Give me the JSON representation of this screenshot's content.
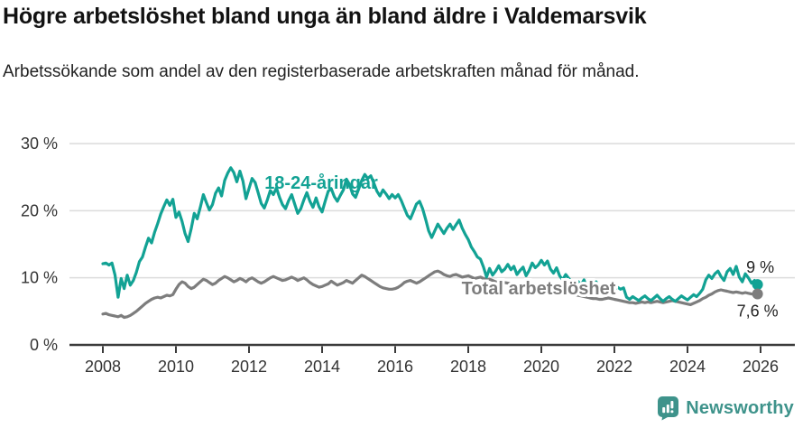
{
  "chart_data": {
    "type": "line",
    "title": "Högre arbetslöshet bland unga än bland äldre i Valdemarsvik",
    "subtitle": "Arbetssökande som andel av den registerbaserade arbetskraften månad för månad.",
    "unit": "percent",
    "frequency": "monthly",
    "grid": true,
    "x_axis": {
      "start_year": 2008,
      "end_year": 2026,
      "tick_values": [
        2008,
        2010,
        2012,
        2014,
        2016,
        2018,
        2020,
        2022,
        2024,
        2026
      ],
      "tick_labels": [
        "2008",
        "2010",
        "2012",
        "2014",
        "2016",
        "2018",
        "2020",
        "2022",
        "2024",
        "2026"
      ]
    },
    "y_axis": {
      "min": 0,
      "max": 30,
      "tick_values": [
        0,
        10,
        20,
        30
      ],
      "tick_labels": [
        "0 %",
        "10 %",
        "20 %",
        "30 %"
      ]
    },
    "axis_color": "#3B3B3B",
    "grid_color": "#DCDCDC",
    "tick_text_color": "#333333",
    "series": [
      {
        "id": "youth",
        "name": "18-24-åringar",
        "color": "#12A294",
        "end_label": "9 %",
        "label_halo": false,
        "label_pos": {
          "x": 356,
          "y": 209
        },
        "end_label_offset": {
          "x": 3,
          "y": -13
        },
        "values": [
          12.1,
          12.2,
          11.9,
          12.2,
          10.4,
          7.1,
          9.9,
          8.4,
          10.4,
          8.9,
          9.6,
          10.8,
          12.4,
          13.1,
          14.6,
          15.9,
          15.2,
          16.8,
          18.1,
          19.5,
          20.6,
          21.6,
          20.8,
          21.7,
          19.0,
          19.8,
          18.4,
          16.6,
          15.4,
          17.3,
          19.6,
          18.8,
          20.5,
          22.4,
          21.2,
          20.1,
          20.9,
          22.6,
          23.4,
          22.2,
          24.5,
          25.6,
          26.4,
          25.7,
          24.3,
          25.9,
          24.4,
          21.8,
          23.3,
          24.8,
          24.2,
          22.7,
          21.1,
          20.4,
          21.6,
          23.0,
          22.4,
          23.4,
          22.0,
          20.9,
          20.3,
          21.5,
          22.4,
          21.0,
          19.6,
          20.3,
          21.6,
          22.7,
          21.4,
          20.5,
          21.9,
          20.6,
          19.8,
          21.4,
          22.9,
          23.3,
          22.1,
          21.4,
          22.3,
          23.1,
          24.7,
          23.9,
          22.5,
          22.0,
          23.2,
          24.5,
          25.4,
          24.8,
          25.2,
          24.1,
          22.9,
          22.2,
          23.1,
          22.5,
          21.8,
          22.4,
          21.9,
          22.4,
          21.5,
          20.4,
          19.3,
          18.8,
          19.9,
          21.0,
          21.4,
          20.3,
          18.7,
          17.0,
          16.0,
          17.0,
          18.0,
          17.3,
          16.6,
          17.4,
          18.0,
          17.2,
          17.9,
          18.6,
          17.4,
          16.5,
          15.7,
          14.6,
          13.9,
          13.1,
          12.8,
          11.6,
          10.1,
          11.4,
          10.4,
          11.0,
          11.8,
          10.9,
          11.3,
          12.0,
          11.2,
          11.7,
          10.5,
          11.1,
          11.6,
          10.3,
          11.1,
          12.2,
          11.5,
          11.9,
          12.6,
          11.9,
          12.5,
          11.3,
          10.7,
          11.5,
          10.3,
          9.7,
          10.5,
          9.9,
          9.3,
          8.7,
          9.5,
          8.9,
          9.7,
          8.5,
          9.2,
          8.7,
          9.4,
          8.6,
          8.2,
          8.6,
          8.3,
          8.5,
          8.4,
          8.6,
          8.3,
          8.5,
          7.1,
          6.8,
          7.2,
          6.9,
          6.6,
          7.0,
          7.3,
          6.9,
          6.6,
          7.0,
          7.4,
          6.9,
          6.5,
          6.9,
          7.2,
          6.8,
          6.5,
          6.9,
          7.3,
          7.0,
          6.7,
          7.1,
          7.5,
          7.2,
          7.7,
          8.3,
          9.7,
          10.4,
          9.9,
          10.6,
          11.0,
          10.2,
          9.6,
          10.9,
          11.4,
          10.5,
          11.7,
          10.1,
          9.4,
          10.6,
          10.0,
          9.2,
          9.6,
          9.0
        ]
      },
      {
        "id": "total",
        "name": "Total arbetslöshet",
        "color": "#7D7D7D",
        "end_label": "7,6 %",
        "label_halo": true,
        "label_pos": {
          "x": 597,
          "y": 326
        },
        "end_label_offset": {
          "x": 0,
          "y": 25
        },
        "values": [
          4.6,
          4.7,
          4.5,
          4.4,
          4.3,
          4.2,
          4.4,
          4.1,
          4.2,
          4.4,
          4.7,
          5.0,
          5.4,
          5.8,
          6.2,
          6.5,
          6.8,
          7.0,
          7.1,
          7.0,
          7.2,
          7.4,
          7.3,
          7.5,
          8.3,
          9.0,
          9.4,
          9.2,
          8.7,
          8.4,
          8.6,
          9.0,
          9.4,
          9.8,
          9.6,
          9.3,
          9.0,
          9.2,
          9.6,
          9.9,
          10.2,
          10.0,
          9.7,
          9.4,
          9.6,
          9.9,
          9.7,
          9.4,
          9.8,
          10.0,
          9.7,
          9.4,
          9.2,
          9.4,
          9.7,
          10.0,
          10.2,
          10.0,
          9.8,
          9.6,
          9.7,
          9.9,
          10.1,
          9.9,
          9.6,
          9.8,
          10.0,
          9.7,
          9.3,
          9.0,
          8.8,
          8.6,
          8.7,
          8.9,
          9.1,
          9.5,
          9.2,
          8.9,
          9.1,
          9.3,
          9.6,
          9.4,
          9.2,
          9.6,
          10.0,
          10.4,
          10.2,
          9.9,
          9.6,
          9.3,
          9.0,
          8.7,
          8.5,
          8.4,
          8.3,
          8.3,
          8.4,
          8.6,
          8.9,
          9.3,
          9.5,
          9.6,
          9.4,
          9.2,
          9.4,
          9.7,
          10.0,
          10.3,
          10.6,
          10.9,
          11.0,
          10.8,
          10.5,
          10.3,
          10.2,
          10.4,
          10.5,
          10.3,
          10.1,
          10.2,
          10.3,
          10.1,
          9.9,
          10.0,
          10.1,
          9.9,
          9.7,
          9.8,
          9.6,
          9.4,
          9.3,
          9.4,
          9.3,
          9.2,
          9.1,
          9.0,
          8.9,
          8.8,
          8.9,
          8.8,
          8.7,
          8.6,
          8.5,
          8.4,
          8.5,
          8.6,
          8.8,
          9.0,
          8.9,
          8.7,
          8.5,
          8.3,
          8.1,
          7.9,
          7.7,
          7.5,
          7.4,
          7.3,
          7.2,
          7.1,
          7.0,
          6.9,
          6.9,
          6.8,
          6.8,
          6.9,
          7.0,
          6.9,
          6.8,
          6.7,
          6.6,
          6.5,
          6.4,
          6.3,
          6.3,
          6.2,
          6.3,
          6.4,
          6.3,
          6.4,
          6.3,
          6.4,
          6.5,
          6.4,
          6.3,
          6.4,
          6.5,
          6.6,
          6.5,
          6.4,
          6.3,
          6.2,
          6.1,
          6.0,
          6.2,
          6.4,
          6.6,
          6.9,
          7.1,
          7.4,
          7.6,
          7.9,
          8.1,
          8.2,
          8.1,
          8.0,
          7.9,
          7.8,
          7.9,
          7.8,
          7.7,
          7.8,
          7.7,
          7.6,
          7.5,
          7.6
        ]
      }
    ]
  },
  "footer": {
    "brand_name": "Newsworthy",
    "brand_color": "#3E938B"
  }
}
